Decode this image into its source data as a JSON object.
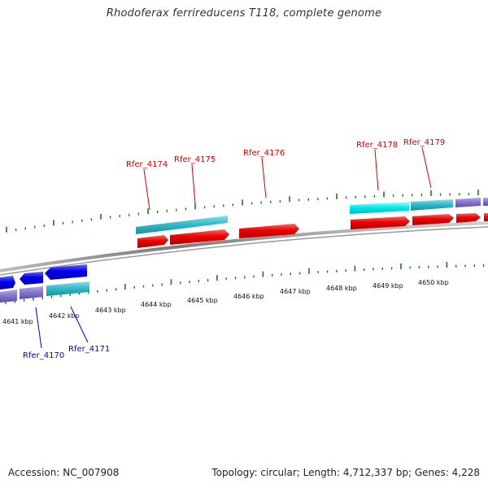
{
  "title": "Rhodoferax ferrireducens T118, complete genome",
  "footer": {
    "accession": "Accession: NC_007908",
    "summary": "Topology: circular; Length: 4,712,337 bp; Genes: 4,228"
  },
  "scale_labels": [
    {
      "text": "4641 kbp"
    },
    {
      "text": "4642 kbp"
    },
    {
      "text": "4643 kbp"
    },
    {
      "text": "4644 kbp"
    },
    {
      "text": "4645 kbp"
    },
    {
      "text": "4646 kbp"
    },
    {
      "text": "4647 kbp"
    },
    {
      "text": "4648 kbp"
    },
    {
      "text": "4649 kbp"
    },
    {
      "text": "4650 kbp"
    }
  ],
  "gene_labels": [
    {
      "text": "Rfer_4174",
      "color": "#cc0000"
    },
    {
      "text": "Rfer_4175",
      "color": "#cc0000"
    },
    {
      "text": "Rfer_4176",
      "color": "#cc0000"
    },
    {
      "text": "Rfer_4178",
      "color": "#cc0000"
    },
    {
      "text": "Rfer_4179",
      "color": "#cc0000"
    },
    {
      "text": "Rfer_4170",
      "color": "#0000cc"
    },
    {
      "text": "Rfer_4171",
      "color": "#0000cc"
    }
  ],
  "colors": {
    "forward_cds": "#ee0000",
    "reverse_cds": "#0000ee",
    "forward_gene": "#33bbcc",
    "reverse_gene": "#33bbcc",
    "highlight_gene": "#00eeee",
    "other_feature": "#8877cc",
    "tick": "#1a7a1a",
    "backbone": "#888888"
  }
}
